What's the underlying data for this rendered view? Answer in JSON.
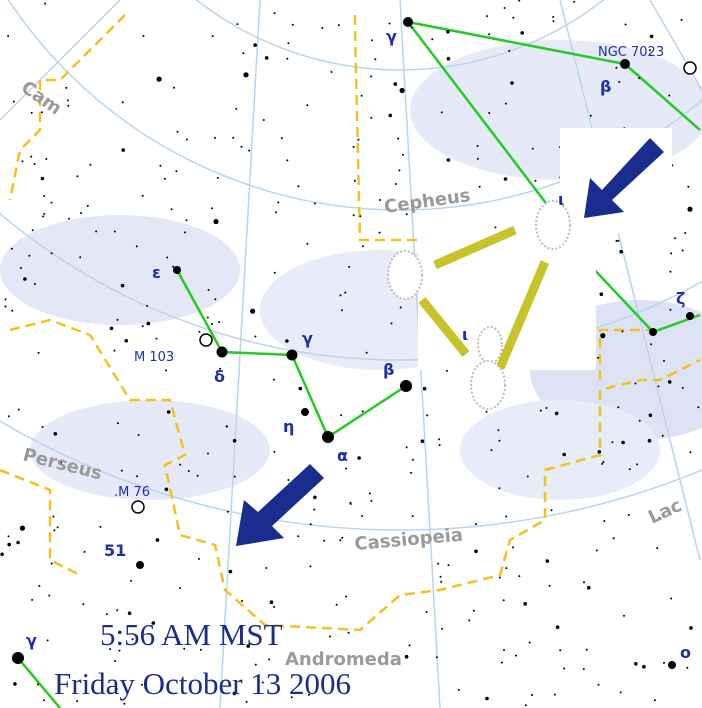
{
  "labels": [
    "Cam",
    "Cepheus",
    "NGC 7023",
    "γ",
    "β",
    "ζ",
    "ε",
    "M 103",
    "δ",
    "γ",
    "β",
    "η",
    "α",
    "Perseus",
    ".M 76",
    "Cassiopeia",
    "Lac",
    "51",
    "γ",
    "o",
    "Andromeda",
    "ι",
    "ι"
  ],
  "caption": {
    "time": "5:56 AM MST",
    "date": "Friday October 13 2006"
  }
}
